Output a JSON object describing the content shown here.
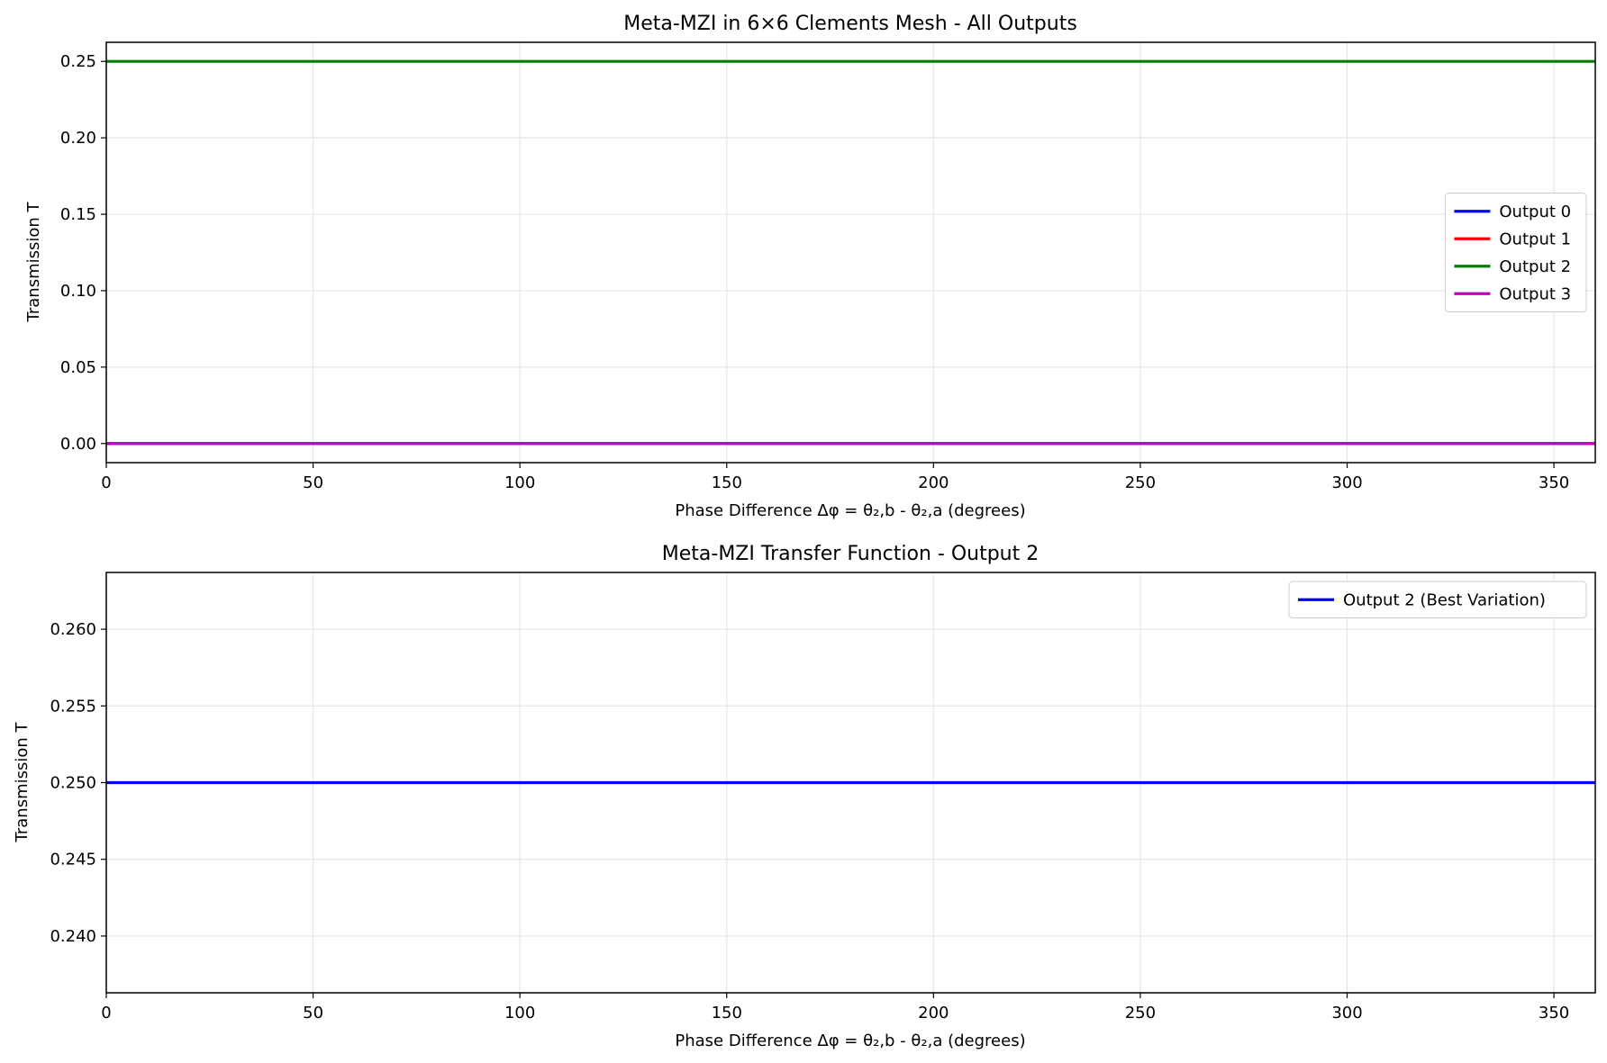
{
  "chart_data": [
    {
      "type": "line",
      "title": "Meta-MZI in 6×6 Clements Mesh - All Outputs",
      "xlabel": "Phase Difference Δφ = θ₂,b - θ₂,a (degrees)",
      "ylabel": "Transmission T",
      "xlim": [
        0,
        360
      ],
      "ylim": [
        -0.0125,
        0.2625
      ],
      "xticks": [
        0,
        50,
        100,
        150,
        200,
        250,
        300,
        350
      ],
      "yticks": [
        0.0,
        0.05,
        0.1,
        0.15,
        0.2,
        0.25
      ],
      "ytick_labels": [
        "0.00",
        "0.05",
        "0.10",
        "0.15",
        "0.20",
        "0.25"
      ],
      "grid": true,
      "legend_position": "center-right",
      "series": [
        {
          "name": "Output 0",
          "color": "#0000ff",
          "x": [
            0,
            360
          ],
          "y": [
            0.0,
            0.0
          ]
        },
        {
          "name": "Output 1",
          "color": "#ff0000",
          "x": [
            0,
            360
          ],
          "y": [
            0.0,
            0.0
          ]
        },
        {
          "name": "Output 2",
          "color": "#008000",
          "x": [
            0,
            360
          ],
          "y": [
            0.25,
            0.25
          ]
        },
        {
          "name": "Output 3",
          "color": "#bf00bf",
          "x": [
            0,
            360
          ],
          "y": [
            0.0,
            0.0
          ]
        }
      ]
    },
    {
      "type": "line",
      "title": "Meta-MZI Transfer Function - Output 2",
      "xlabel": "Phase Difference Δφ = θ₂,b - θ₂,a (degrees)",
      "ylabel": "Transmission T",
      "xlim": [
        0,
        360
      ],
      "ylim": [
        0.2363,
        0.2637
      ],
      "xticks": [
        0,
        50,
        100,
        150,
        200,
        250,
        300,
        350
      ],
      "yticks": [
        0.24,
        0.245,
        0.25,
        0.255,
        0.26
      ],
      "ytick_labels": [
        "0.240",
        "0.245",
        "0.250",
        "0.255",
        "0.260"
      ],
      "grid": true,
      "legend_position": "upper-right",
      "series": [
        {
          "name": "Output 2 (Best Variation)",
          "color": "#0000ff",
          "x": [
            0,
            360
          ],
          "y": [
            0.25,
            0.25
          ]
        }
      ]
    }
  ]
}
